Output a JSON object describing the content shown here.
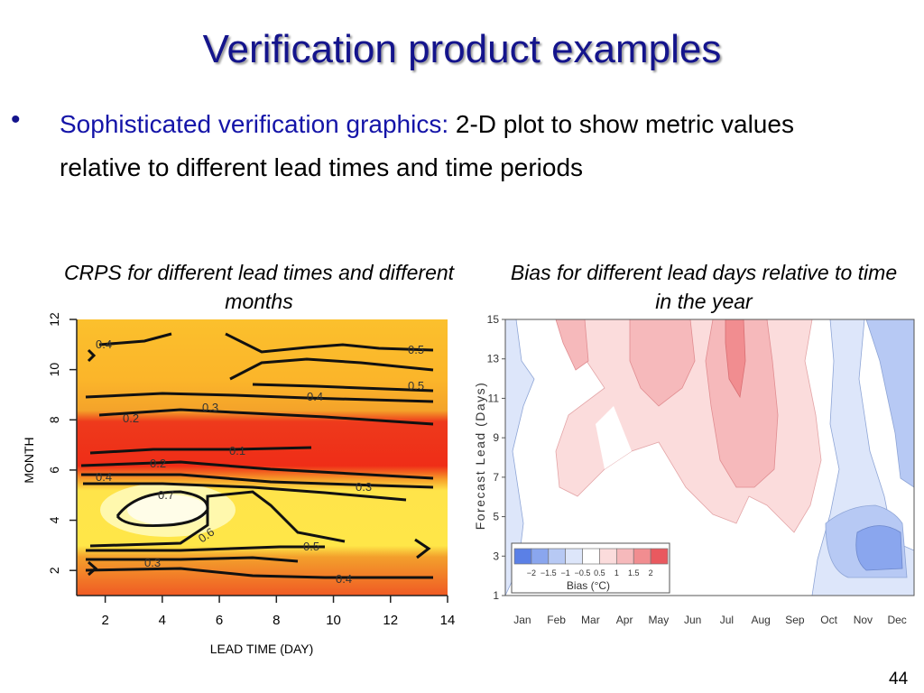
{
  "slide": {
    "title": "Verification product examples",
    "bullet_lead": "Sophisticated verification graphics:",
    "bullet_rest": " 2-D plot to show metric values relative to different lead times and time periods",
    "page_number": "44"
  },
  "figures": {
    "left_caption": "CRPS for different lead times and different months",
    "right_caption": "Bias for different lead days relative to time in the year"
  },
  "chart_data": [
    {
      "type": "heatmap",
      "xlabel": "LEAD TIME (DAY)",
      "ylabel": "MONTH",
      "xlim": [
        1,
        14
      ],
      "ylim": [
        1,
        12
      ],
      "x_ticks": [
        "2",
        "4",
        "6",
        "8",
        "10",
        "12",
        "14"
      ],
      "y_ticks": [
        "2",
        "4",
        "6",
        "8",
        "10",
        "12"
      ],
      "contour_labels": [
        "0.4",
        "0.5",
        "0.5",
        "0.4",
        "0.3",
        "0.2",
        "0.1",
        "0.2",
        "0.4",
        "0.3",
        "0.7",
        "0.6",
        "0.5",
        "0.3",
        "0.4"
      ]
    },
    {
      "type": "heatmap",
      "ylabel": "Forecast Lead (Days)",
      "x_ticks": [
        "Jan",
        "Feb",
        "Mar",
        "Apr",
        "May",
        "Jun",
        "Jul",
        "Aug",
        "Sep",
        "Oct",
        "Nov",
        "Dec"
      ],
      "y_ticks": [
        "1",
        "3",
        "5",
        "7",
        "9",
        "11",
        "13",
        "15"
      ],
      "ylim": [
        1,
        15
      ],
      "colorbar": {
        "title": "Bias (°C)",
        "ticks": [
          "−2",
          "−1.5",
          "−1",
          "−0.5",
          "0.5",
          "1",
          "1.5",
          "2"
        ],
        "colors": [
          "#5b80e6",
          "#8aa6ee",
          "#b7c9f4",
          "#dde6fa",
          "#ffffff",
          "#fbdcdc",
          "#f6b9bb",
          "#f18d90",
          "#e9595f"
        ]
      }
    }
  ]
}
